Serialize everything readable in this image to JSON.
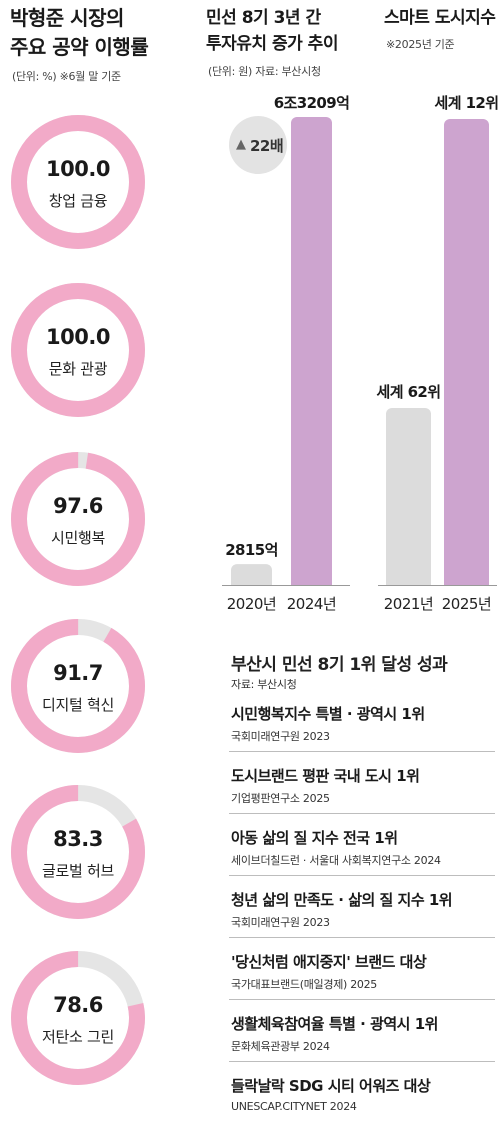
{
  "left": {
    "title_line1": "박형준 시장의",
    "title_line2": "주요 공약 이행률",
    "unit_note": "(단위: %)  ※6월 말 기준"
  },
  "middle": {
    "title_line1": "민선 8기 3년 간",
    "title_line2": "투자유치 증가 추이",
    "unit_note": "(단위: 원)   자료: 부산시청",
    "badge": "22배"
  },
  "right": {
    "title": "스마트 도시지수",
    "note": "※2025년 기준"
  },
  "achievements": {
    "title": "부산시 민선 8기 1위 달성 성과",
    "source": "자료: 부산시청",
    "items": [
      {
        "title": "시민행복지수 특별 · 광역시 1위",
        "source": "국회미래연구원 2023"
      },
      {
        "title": "도시브랜드 평판 국내 도시 1위",
        "source": "기업평판연구소 2025"
      },
      {
        "title": "아동 삶의 질 지수 전국 1위",
        "source": "세이브더칠드런 · 서울대 사회복지연구소 2024"
      },
      {
        "title": "청년 삶의 만족도 · 삶의 질 지수 1위",
        "source": "국회미래연구원 2023"
      },
      {
        "title": "'당신처럼 애지중지' 브랜드 대상",
        "source": "국가대표브랜드(매일경제) 2025"
      },
      {
        "title": "생활체육참여율 특별 · 광역시 1위",
        "source": "문화체육관광부 2024"
      },
      {
        "title": "들락날락 SDG 시티 어워즈 대상",
        "source": "UNESCAP.CITYNET 2024"
      }
    ]
  },
  "colors": {
    "pink": "#f2aac8",
    "track": "#e5e5e5",
    "purple": "#cda4cf",
    "gray": "#dcdcdc"
  },
  "chart_data": [
    {
      "type": "pie",
      "title": "박형준 시장의 주요 공약 이행률",
      "unit": "%",
      "categories": [
        "창업 금융",
        "문화 관광",
        "시민행복",
        "디지털 혁신",
        "글로벌 허브",
        "저탄소 그린"
      ],
      "values": [
        100.0,
        100.0,
        97.6,
        91.7,
        83.3,
        78.6
      ],
      "value_labels": [
        "100.0",
        "100.0",
        "97.6",
        "91.7",
        "83.3",
        "78.6"
      ]
    },
    {
      "type": "bar",
      "title": "민선 8기 3년 간 투자유치 증가 추이",
      "categories": [
        "2020년",
        "2024년"
      ],
      "values": [
        2815,
        63209
      ],
      "value_unit": "억 원",
      "data_labels": [
        "2815억",
        "6조3209억"
      ],
      "annotation": "22배"
    },
    {
      "type": "bar",
      "title": "스마트 도시지수",
      "categories": [
        "2021년",
        "2025년"
      ],
      "values": [
        62,
        12
      ],
      "value_unit": "위",
      "data_labels": [
        "세계 62위",
        "세계 12위"
      ]
    }
  ]
}
